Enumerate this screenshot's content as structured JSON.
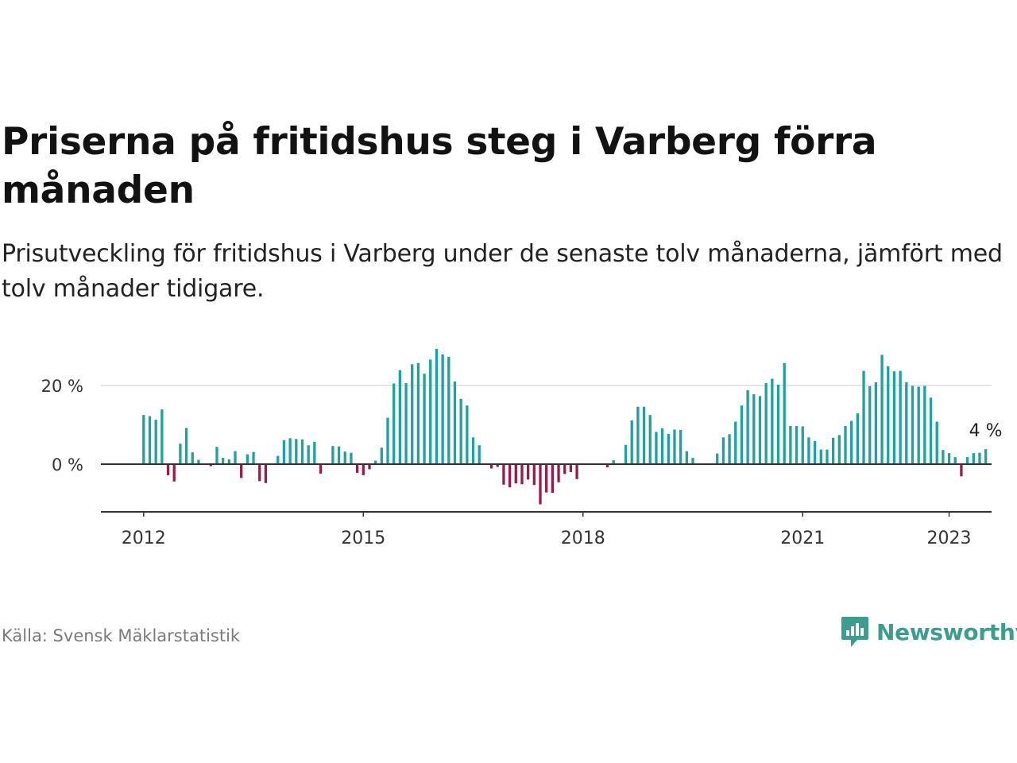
{
  "header": {
    "title": "Priserna på fritidshus steg i Varberg förra månaden",
    "subtitle": "Prisutveckling för fritidshus i Varberg under de senaste tolv månaderna, jämfört med tolv månader tidigare."
  },
  "footer": {
    "source": "Källa: Svensk Mäklarstatistik",
    "brand": "Newsworthy"
  },
  "colors": {
    "positive": "#1ba39c",
    "negative": "#9b1a4b",
    "axis": "#333333",
    "grid": "#dddddd",
    "brand": "#3c9d8f"
  },
  "chart_data": {
    "type": "bar",
    "unit": "%",
    "start": "2012-01",
    "frequency": "monthly",
    "xticks": [
      "2012",
      "2015",
      "2018",
      "2021",
      "2023"
    ],
    "yticks": [
      0,
      20
    ],
    "ytick_labels": [
      "0 %",
      "20 %"
    ],
    "ylim": [
      -12,
      30
    ],
    "grid": "horizontal",
    "last_label": "4 %",
    "values": [
      12.5,
      12.2,
      11.3,
      13.9,
      -2.8,
      -4.4,
      5.2,
      9.2,
      3.0,
      1.1,
      -0.2,
      -0.5,
      4.4,
      1.6,
      1.2,
      3.3,
      -3.5,
      2.5,
      3.1,
      -4.3,
      -4.8,
      0.0,
      2.1,
      6.1,
      6.6,
      6.4,
      6.3,
      4.8,
      5.7,
      -2.4,
      0.0,
      4.6,
      4.5,
      3.2,
      2.9,
      -2.2,
      -2.8,
      -1.3,
      0.9,
      4.2,
      11.8,
      20.5,
      23.9,
      20.6,
      25.4,
      25.7,
      23.0,
      26.6,
      29.3,
      27.9,
      27.3,
      21.0,
      16.6,
      14.9,
      6.8,
      4.8,
      0.0,
      -1.1,
      -0.7,
      -5.2,
      -5.9,
      -4.9,
      -5.1,
      -3.9,
      -5.3,
      -10.2,
      -7.2,
      -7.3,
      -4.6,
      -2.5,
      -2.0,
      -3.8,
      0.0,
      0.0,
      0.0,
      0.0,
      -0.8,
      1.0,
      0.0,
      4.9,
      11.1,
      14.6,
      14.6,
      12.5,
      8.2,
      9.1,
      7.7,
      8.8,
      8.7,
      3.3,
      1.6,
      0.0,
      0.0,
      0.0,
      2.7,
      6.8,
      7.6,
      10.8,
      14.9,
      18.8,
      17.8,
      17.3,
      20.6,
      21.7,
      20.2,
      25.7,
      9.7,
      9.7,
      9.6,
      6.8,
      5.9,
      3.7,
      3.7,
      6.7,
      7.4,
      9.7,
      11.0,
      12.9,
      23.7,
      19.8,
      20.8,
      27.8,
      24.9,
      23.6,
      23.7,
      20.8,
      19.9,
      19.7,
      19.9,
      16.9,
      10.8,
      3.6,
      2.8,
      1.8,
      -3.1,
      1.8,
      2.8,
      2.9,
      3.8
    ]
  }
}
